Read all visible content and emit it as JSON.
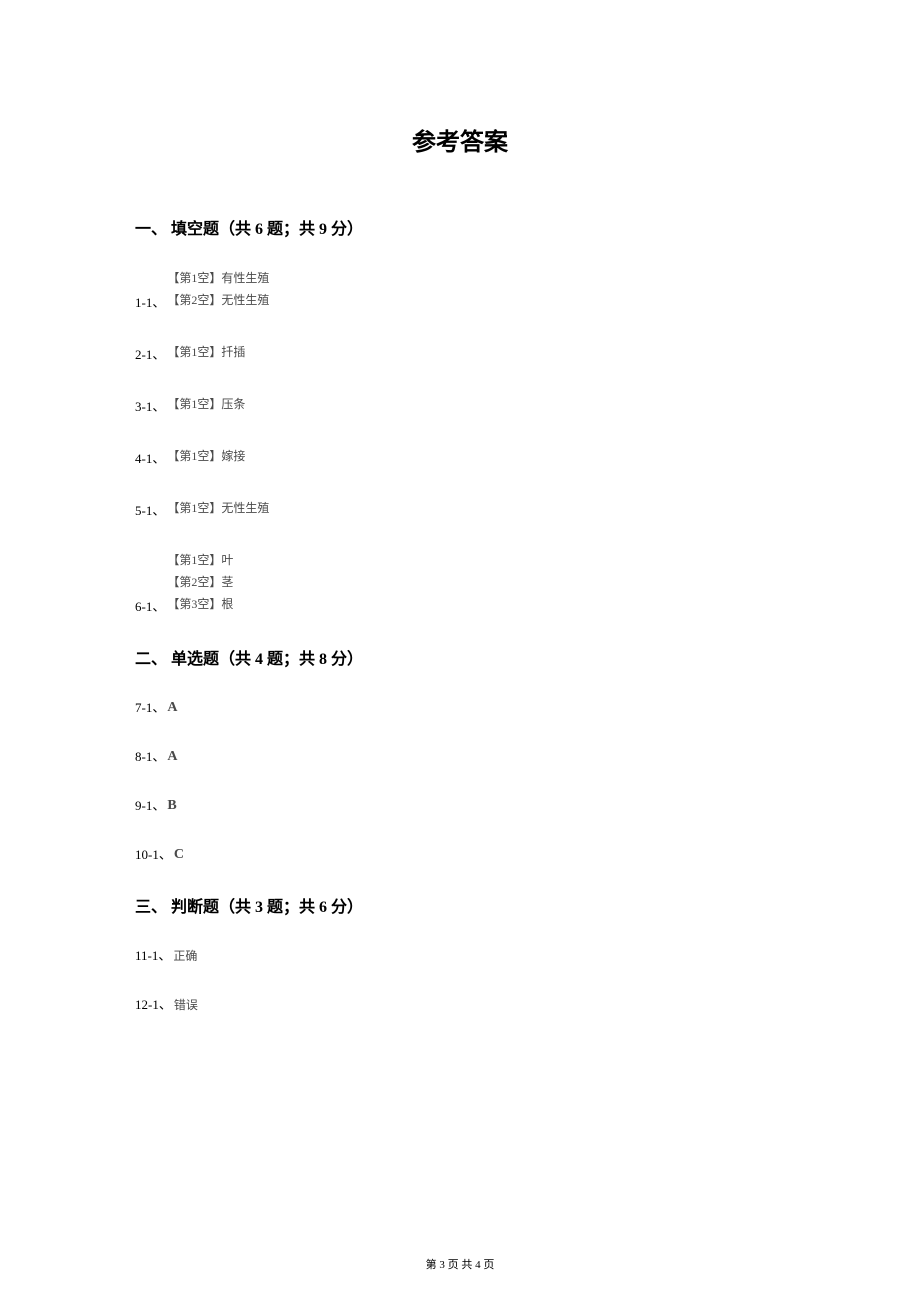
{
  "colors": {
    "background": "#ffffff",
    "title": "#000000",
    "heading": "#000000",
    "index_text": "#000000",
    "answer_text": "#4a4a4a",
    "footer_text": "#000000"
  },
  "typography": {
    "title_fontsize": 24,
    "heading_fontsize": 16,
    "index_fontsize": 13,
    "blank_fontsize": 12,
    "mc_fontsize": 14,
    "footer_fontsize": 11
  },
  "title": "参考答案",
  "sections": {
    "fill": {
      "heading": "一、 填空题（共 6 题；共 9 分）",
      "items": [
        {
          "index": "1-1、",
          "blanks": [
            "【第1空】有性生殖",
            "【第2空】无性生殖"
          ]
        },
        {
          "index": "2-1、",
          "blanks": [
            "【第1空】扦插"
          ]
        },
        {
          "index": "3-1、",
          "blanks": [
            "【第1空】压条"
          ]
        },
        {
          "index": "4-1、",
          "blanks": [
            "【第1空】嫁接"
          ]
        },
        {
          "index": "5-1、",
          "blanks": [
            "【第1空】无性生殖"
          ]
        },
        {
          "index": "6-1、",
          "blanks": [
            "【第1空】叶",
            "【第2空】茎",
            "【第3空】根"
          ]
        }
      ]
    },
    "choice": {
      "heading": "二、 单选题（共 4 题；共 8 分）",
      "items": [
        {
          "index": "7-1、",
          "answer": "A"
        },
        {
          "index": "8-1、",
          "answer": "A"
        },
        {
          "index": "9-1、",
          "answer": "B"
        },
        {
          "index": "10-1、",
          "answer": "C"
        }
      ]
    },
    "judge": {
      "heading": "三、 判断题（共 3 题；共 6 分）",
      "items": [
        {
          "index": "11-1、",
          "answer": "正确"
        },
        {
          "index": "12-1、",
          "answer": "错误"
        }
      ]
    }
  },
  "footer": "第 3 页 共 4 页"
}
